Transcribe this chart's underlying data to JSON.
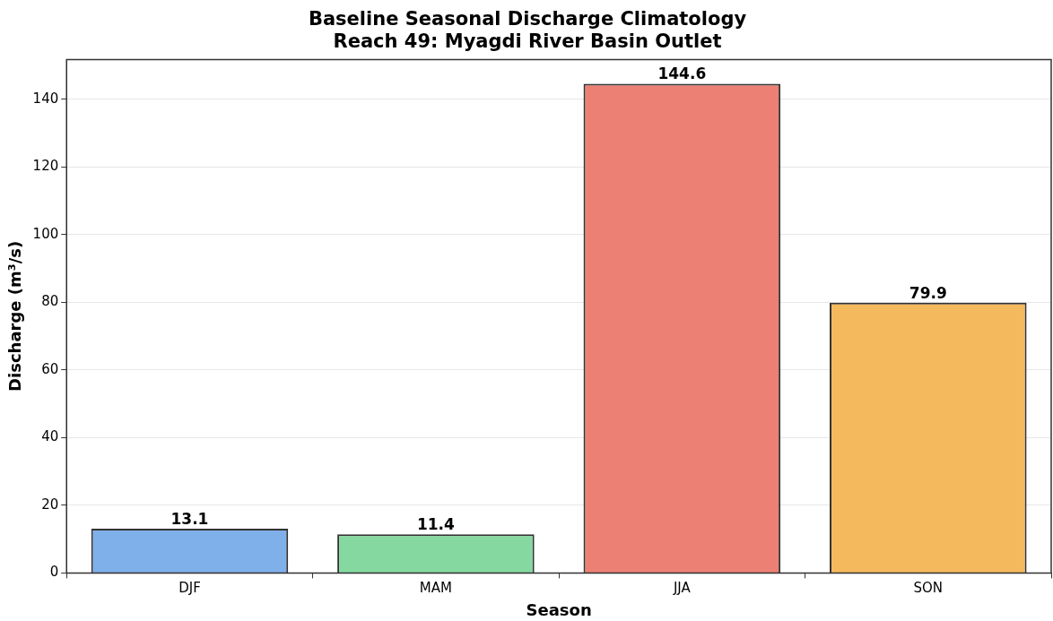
{
  "chart_data": {
    "type": "bar",
    "title": "Baseline Seasonal Discharge Climatology",
    "subtitle": "Reach 49: Myagdi River Basin Outlet",
    "xlabel": "Season",
    "ylabel": "Discharge (m³/s)",
    "categories": [
      "DJF",
      "MAM",
      "JJA",
      "SON"
    ],
    "values": [
      13.1,
      11.4,
      144.6,
      79.9
    ],
    "colors": [
      "#7fb0ea",
      "#85d8a0",
      "#ec8074",
      "#f4b95c"
    ],
    "ylim": [
      0,
      151.8
    ],
    "yticks": [
      0,
      20,
      40,
      60,
      80,
      100,
      120,
      140
    ],
    "grid": "y",
    "data_labels": true,
    "legend": false
  }
}
